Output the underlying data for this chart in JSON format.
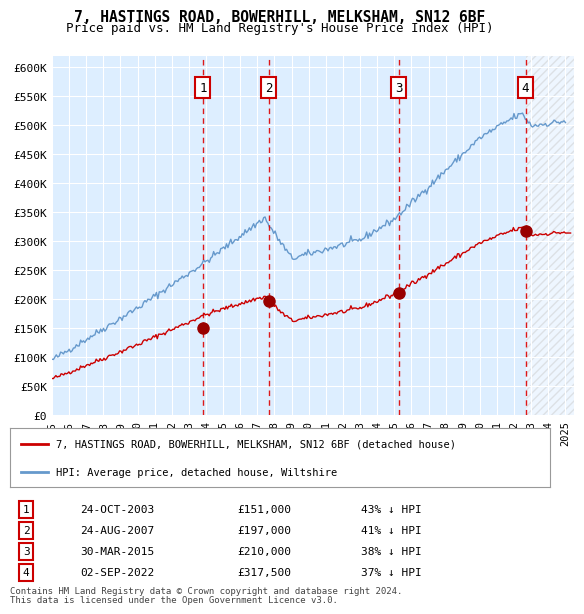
{
  "title": "7, HASTINGS ROAD, BOWERHILL, MELKSHAM, SN12 6BF",
  "subtitle": "Price paid vs. HM Land Registry's House Price Index (HPI)",
  "title_fontsize": 11,
  "subtitle_fontsize": 9.5,
  "ylabel_ticks": [
    "£0",
    "£50K",
    "£100K",
    "£150K",
    "£200K",
    "£250K",
    "£300K",
    "£350K",
    "£400K",
    "£450K",
    "£500K",
    "£550K",
    "£600K"
  ],
  "ytick_values": [
    0,
    50000,
    100000,
    150000,
    200000,
    250000,
    300000,
    350000,
    400000,
    450000,
    500000,
    550000,
    600000
  ],
  "xlim_start": 1995.0,
  "xlim_end": 2025.5,
  "ylim_min": 0,
  "ylim_max": 620000,
  "sales": [
    {
      "num": 1,
      "date": "24-OCT-2003",
      "year": 2003.81,
      "price": 151000,
      "pct": "43%",
      "dir": "↓"
    },
    {
      "num": 2,
      "date": "24-AUG-2007",
      "year": 2007.65,
      "price": 197000,
      "pct": "41%",
      "dir": "↓"
    },
    {
      "num": 3,
      "date": "30-MAR-2015",
      "year": 2015.25,
      "price": 210000,
      "pct": "38%",
      "dir": "↓"
    },
    {
      "num": 4,
      "date": "02-SEP-2022",
      "year": 2022.67,
      "price": 317500,
      "pct": "37%",
      "dir": "↓"
    }
  ],
  "legend_line1": "7, HASTINGS ROAD, BOWERHILL, MELKSHAM, SN12 6BF (detached house)",
  "legend_line2": "HPI: Average price, detached house, Wiltshire",
  "footer1": "Contains HM Land Registry data © Crown copyright and database right 2024.",
  "footer2": "This data is licensed under the Open Government Licence v3.0.",
  "red_line_color": "#cc0000",
  "blue_line_color": "#6699cc",
  "bg_color": "#ddeeff",
  "hatch_color": "#cccccc",
  "grid_color": "#ffffff",
  "vline_color": "#dd0000",
  "box_color": "#cc0000"
}
